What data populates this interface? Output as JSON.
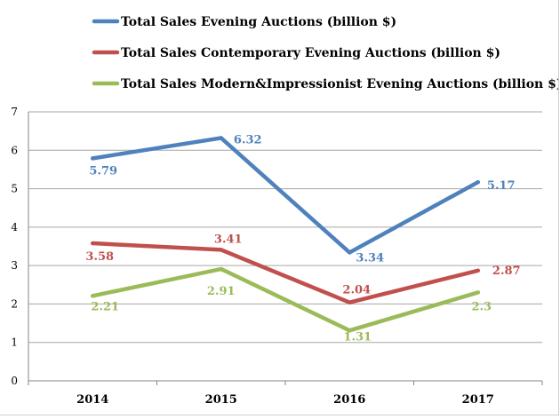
{
  "chart_data": {
    "type": "line",
    "title": "",
    "xlabel": "",
    "ylabel": "",
    "categories": [
      "2014",
      "2015",
      "2016",
      "2017"
    ],
    "ylim": [
      0,
      7
    ],
    "yticks": [
      0,
      1,
      2,
      3,
      4,
      5,
      6,
      7
    ],
    "grid": true,
    "legend_position": "top",
    "series": [
      {
        "name": "Total Sales Evening Auctions (billion $)",
        "color": "#4f81bd",
        "values": [
          5.79,
          6.32,
          3.34,
          5.17
        ],
        "labels": [
          "5.79",
          "6.32",
          "3.34",
          "5.17"
        ]
      },
      {
        "name": "Total Sales Contemporary Evening Auctions (billion $)",
        "color": "#c0504d",
        "values": [
          3.58,
          3.41,
          2.04,
          2.87
        ],
        "labels": [
          "3.58",
          "3.41",
          "2.04",
          "2.87"
        ]
      },
      {
        "name": "Total Sales Modern&Impressionist Evening Auctions (billion $)",
        "color": "#9bbb59",
        "values": [
          2.21,
          2.91,
          1.31,
          2.3
        ],
        "labels": [
          "2.21",
          "2.91",
          "1.31",
          "2.3"
        ]
      }
    ]
  }
}
